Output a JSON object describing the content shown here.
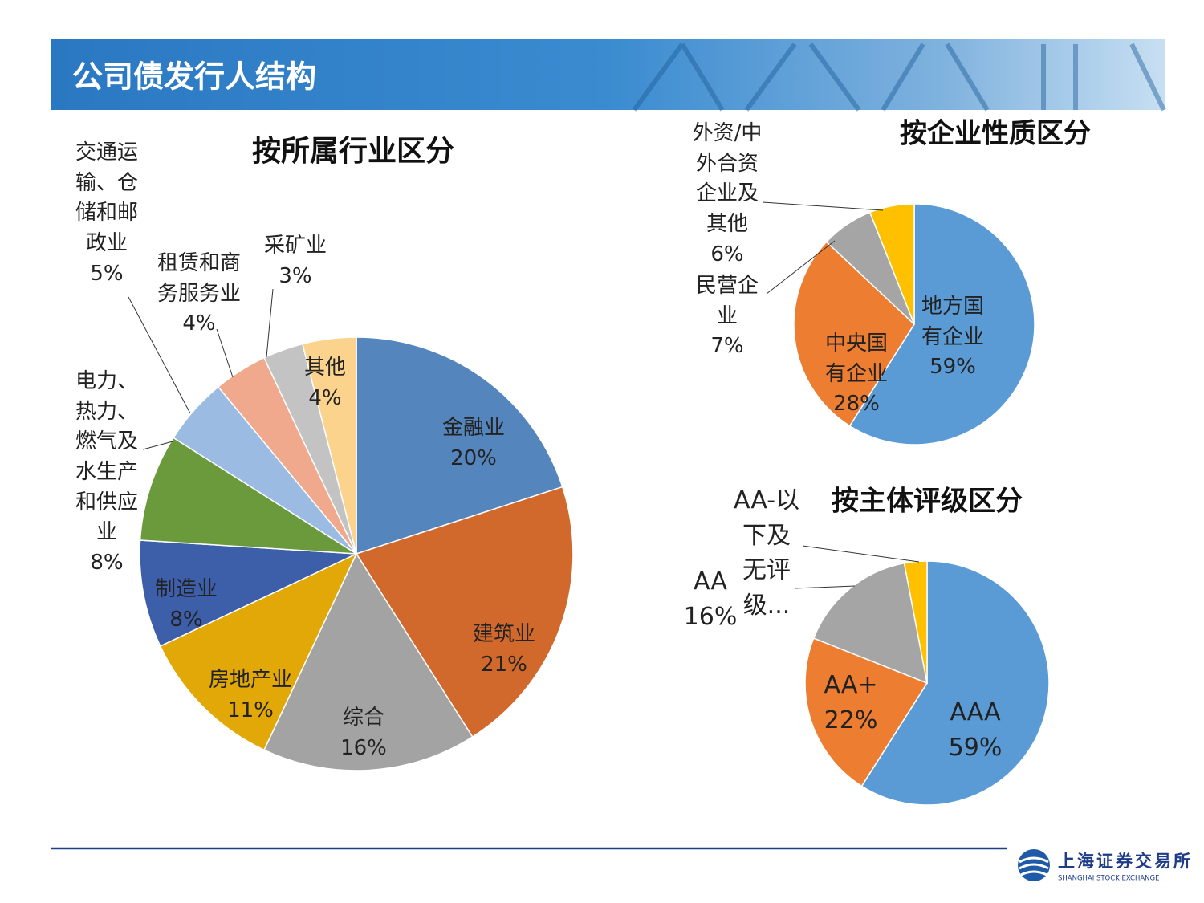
{
  "slide": {
    "title": "公司债发行人结构",
    "footer": {
      "logo_name": "上海证券交易所",
      "logo_subtitle": "SHANGHAI STOCK EXCHANGE"
    }
  },
  "chart_data": [
    {
      "type": "pie",
      "title": "按所属行业区分",
      "categories": [
        "金融业",
        "建筑业",
        "综合",
        "房地产业",
        "制造业",
        "电力、热力、燃气及水生产和供应业",
        "交通运输、仓储和邮政业",
        "租赁和商务服务业",
        "采矿业",
        "其他"
      ],
      "values": [
        20,
        21,
        16,
        11,
        8,
        8,
        5,
        4,
        3,
        4
      ],
      "value_labels": [
        "20%",
        "21%",
        "16%",
        "11%",
        "8%",
        "8%",
        "5%",
        "4%",
        "3%",
        "4%"
      ],
      "colors": [
        "#5585bd",
        "#d2692c",
        "#a3a3a3",
        "#e2a807",
        "#3d5ea9",
        "#6a9a3b",
        "#9bbbe2",
        "#f0a98c",
        "#c3c3c3",
        "#fcd38c"
      ]
    },
    {
      "type": "pie",
      "title": "按企业性质区分",
      "categories": [
        "地方国有企业",
        "中央国有企业",
        "民营企业",
        "外资/中外合资企业及其他"
      ],
      "values": [
        59,
        28,
        7,
        6
      ],
      "value_labels": [
        "59%",
        "28%",
        "7%",
        "6%"
      ],
      "colors": [
        "#5b9bd5",
        "#ed7d31",
        "#a5a5a5",
        "#ffc000"
      ]
    },
    {
      "type": "pie",
      "title": "按主体评级区分",
      "categories": [
        "AAA",
        "AA+",
        "AA",
        "AA-以下及无评级..."
      ],
      "values": [
        59,
        22,
        16,
        3
      ],
      "value_labels": [
        "59%",
        "22%",
        "16%",
        null
      ],
      "colors": [
        "#5b9bd5",
        "#ed7d31",
        "#a5a5a5",
        "#ffc000"
      ]
    }
  ]
}
